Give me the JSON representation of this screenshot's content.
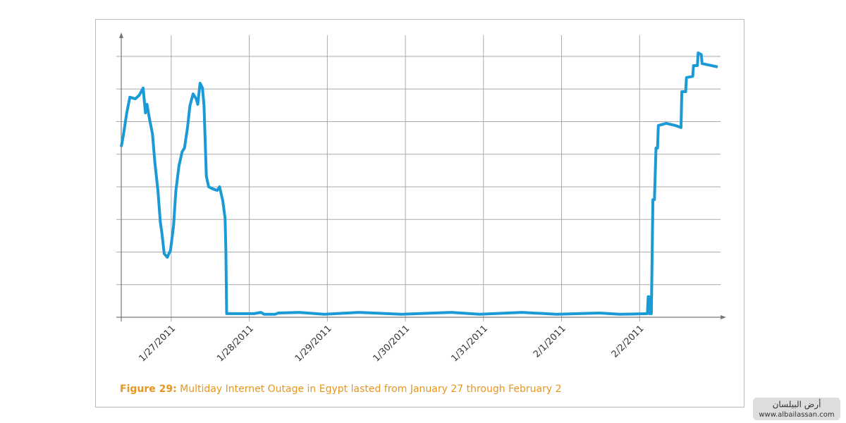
{
  "chart_data": {
    "type": "line",
    "caption_label": "Figure 29:",
    "caption": "Multiday Internet Outage in Egypt lasted from January 27 through February 2",
    "watermark": [
      "أرض البيلسان",
      "www.albailassan.com"
    ],
    "xlim": [
      -0.64,
      7.0
    ],
    "xticks": [
      {
        "value": 0,
        "label": "1/27/2011"
      },
      {
        "value": 1,
        "label": "1/28/2011"
      },
      {
        "value": 2,
        "label": "1/29/2011"
      },
      {
        "value": 3,
        "label": "1/30/2011"
      },
      {
        "value": 4,
        "label": "1/31/2011"
      },
      {
        "value": 5,
        "label": "2/1/2011"
      },
      {
        "value": 6,
        "label": "2/2/2011"
      }
    ],
    "ylim": [
      0,
      8.65
    ],
    "yticks": [
      0,
      1,
      2,
      3,
      4,
      5,
      6,
      7,
      8
    ],
    "grid": true,
    "series": [
      {
        "color": "#1a9ad6",
        "x": [
          -0.64,
          -0.61,
          -0.57,
          -0.53,
          -0.46,
          -0.41,
          -0.36,
          -0.33,
          -0.31,
          -0.28,
          -0.24,
          -0.21,
          -0.17,
          -0.14,
          -0.12,
          -0.09,
          -0.05,
          -0.01,
          0.03,
          0.06,
          0.1,
          0.14,
          0.17,
          0.21,
          0.24,
          0.28,
          0.32,
          0.34,
          0.37,
          0.4,
          0.42,
          0.45,
          0.48,
          0.53,
          0.59,
          0.62,
          0.66,
          0.69,
          0.7,
          0.71,
          0.79,
          1.06,
          1.15,
          1.19,
          1.33,
          1.37,
          1.64,
          1.96,
          2.41,
          2.95,
          3.59,
          3.95,
          4.49,
          4.94,
          5.48,
          5.75,
          6.1,
          6.11,
          6.12,
          6.13,
          6.15,
          6.17,
          6.19,
          6.21,
          6.23,
          6.24,
          6.34,
          6.46,
          6.53,
          6.54,
          6.59,
          6.6,
          6.68,
          6.69,
          6.74,
          6.75,
          6.79,
          6.8,
          6.88,
          7.0
        ],
        "values": [
          5.23,
          5.62,
          6.27,
          6.75,
          6.7,
          6.81,
          7.03,
          6.27,
          6.53,
          6.1,
          5.62,
          4.76,
          3.89,
          2.92,
          2.59,
          1.95,
          1.84,
          2.05,
          2.81,
          3.89,
          4.65,
          5.08,
          5.19,
          5.84,
          6.49,
          6.85,
          6.7,
          6.53,
          7.18,
          7.03,
          6.49,
          4.32,
          4.0,
          3.94,
          3.89,
          4.0,
          3.57,
          3.03,
          2.05,
          0.11,
          0.11,
          0.11,
          0.15,
          0.09,
          0.09,
          0.13,
          0.15,
          0.09,
          0.15,
          0.09,
          0.15,
          0.09,
          0.15,
          0.09,
          0.13,
          0.09,
          0.11,
          0.63,
          0.63,
          0.11,
          0.11,
          3.61,
          3.61,
          5.19,
          5.19,
          5.88,
          5.95,
          5.88,
          5.82,
          6.92,
          6.92,
          7.35,
          7.39,
          7.72,
          7.72,
          8.11,
          8.06,
          7.78,
          7.74,
          7.68
        ]
      }
    ]
  }
}
